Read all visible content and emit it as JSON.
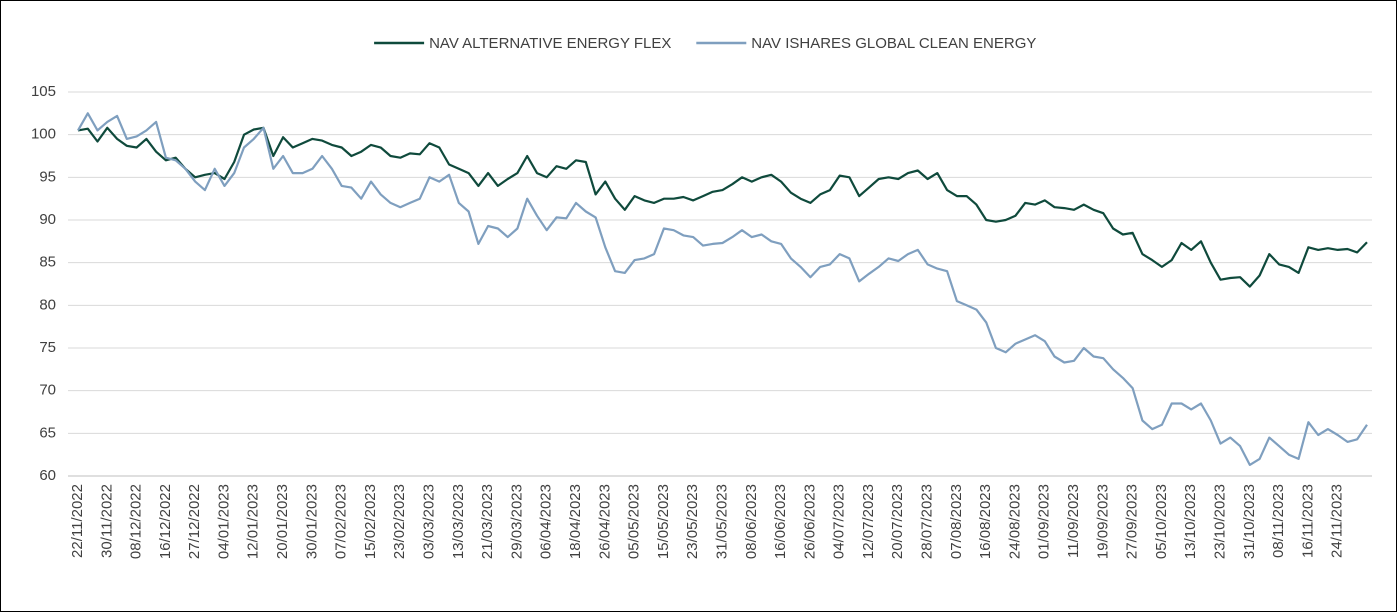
{
  "chart_data": {
    "type": "line",
    "categories": [
      "22/11/2022",
      null,
      null,
      "30/11/2022",
      null,
      null,
      "08/12/2022",
      null,
      null,
      "16/12/2022",
      null,
      null,
      "27/12/2022",
      null,
      null,
      "04/01/2023",
      null,
      null,
      "12/01/2023",
      null,
      null,
      "20/01/2023",
      null,
      null,
      "30/01/2023",
      null,
      null,
      "07/02/2023",
      null,
      null,
      "15/02/2023",
      null,
      null,
      "23/02/2023",
      null,
      null,
      "03/03/2023",
      null,
      null,
      "13/03/2023",
      null,
      null,
      "21/03/2023",
      null,
      null,
      "29/03/2023",
      null,
      null,
      "06/04/2023",
      null,
      null,
      "18/04/2023",
      null,
      null,
      "26/04/2023",
      null,
      null,
      "05/05/2023",
      null,
      null,
      "15/05/2023",
      null,
      null,
      "23/05/2023",
      null,
      null,
      "31/05/2023",
      null,
      null,
      "08/06/2023",
      null,
      null,
      "16/06/2023",
      null,
      null,
      "26/06/2023",
      null,
      null,
      "04/07/2023",
      null,
      null,
      "12/07/2023",
      null,
      null,
      "20/07/2023",
      null,
      null,
      "28/07/2023",
      null,
      null,
      "07/08/2023",
      null,
      null,
      "16/08/2023",
      null,
      null,
      "24/08/2023",
      null,
      null,
      "01/09/2023",
      null,
      null,
      "11/09/2023",
      null,
      null,
      "19/09/2023",
      null,
      null,
      "27/09/2023",
      null,
      null,
      "05/10/2023",
      null,
      null,
      "13/10/2023",
      null,
      null,
      "23/10/2023",
      null,
      null,
      "31/10/2023",
      null,
      null,
      "08/11/2023",
      null,
      null,
      "16/11/2023",
      null,
      null,
      "24/11/2023",
      null,
      null,
      null
    ],
    "series": [
      {
        "name": "NAV ALTERNATIVE ENERGY FLEX",
        "color": "#0f4a3c",
        "values": [
          100.5,
          100.7,
          99.2,
          100.8,
          99.5,
          98.7,
          98.5,
          99.5,
          98.0,
          97.0,
          97.3,
          96.0,
          95.0,
          95.3,
          95.5,
          94.8,
          96.8,
          100.0,
          100.6,
          100.8,
          97.5,
          99.7,
          98.5,
          99.0,
          99.5,
          99.3,
          98.8,
          98.5,
          97.5,
          98.0,
          98.8,
          98.5,
          97.5,
          97.3,
          97.8,
          97.7,
          99.0,
          98.5,
          96.5,
          96.0,
          95.5,
          94.0,
          95.5,
          94.0,
          94.8,
          95.5,
          97.5,
          95.5,
          95.0,
          96.3,
          96.0,
          97.0,
          96.8,
          93.0,
          94.5,
          92.5,
          91.2,
          92.8,
          92.3,
          92.0,
          92.5,
          92.5,
          92.7,
          92.3,
          92.8,
          93.3,
          93.5,
          94.2,
          95.0,
          94.5,
          95.0,
          95.3,
          94.5,
          93.2,
          92.5,
          92.0,
          93.0,
          93.5,
          95.2,
          95.0,
          92.8,
          93.8,
          94.8,
          95.0,
          94.8,
          95.5,
          95.8,
          94.8,
          95.5,
          93.5,
          92.8,
          92.8,
          91.8,
          90.0,
          89.8,
          90.0,
          90.5,
          92.0,
          91.8,
          92.3,
          91.5,
          91.4,
          91.2,
          91.8,
          91.2,
          90.8,
          89.0,
          88.3,
          88.5,
          86.0,
          85.3,
          84.5,
          85.3,
          87.3,
          86.5,
          87.5,
          85.0,
          83.0,
          83.2,
          83.3,
          82.2,
          83.5,
          86.0,
          84.8,
          84.5,
          83.8,
          86.8,
          86.5,
          86.7,
          86.5,
          86.6,
          86.2,
          87.4
        ]
      },
      {
        "name": "NAV ISHARES GLOBAL CLEAN ENERGY",
        "color": "#7f9fbf",
        "values": [
          100.5,
          102.5,
          100.5,
          101.5,
          102.2,
          99.5,
          99.8,
          100.5,
          101.5,
          97.3,
          97.0,
          96.0,
          94.5,
          93.5,
          96.0,
          94.0,
          95.5,
          98.5,
          99.5,
          100.8,
          96.0,
          97.5,
          95.5,
          95.5,
          96.0,
          97.5,
          96.0,
          94.0,
          93.8,
          92.5,
          94.5,
          93.0,
          92.0,
          91.5,
          92.0,
          92.5,
          95.0,
          94.5,
          95.3,
          92.0,
          91.0,
          87.2,
          89.3,
          89.0,
          88.0,
          89.0,
          92.5,
          90.5,
          88.8,
          90.3,
          90.2,
          92.0,
          91.0,
          90.3,
          86.8,
          84.0,
          83.8,
          85.3,
          85.5,
          86.0,
          89.0,
          88.8,
          88.2,
          88.0,
          87.0,
          87.2,
          87.3,
          88.0,
          88.8,
          88.0,
          88.3,
          87.5,
          87.2,
          85.5,
          84.5,
          83.3,
          84.5,
          84.8,
          86.0,
          85.5,
          82.8,
          83.7,
          84.5,
          85.5,
          85.2,
          86.0,
          86.5,
          84.8,
          84.3,
          84.0,
          80.5,
          80.0,
          79.5,
          78.0,
          75.0,
          74.5,
          75.5,
          76.0,
          76.5,
          75.8,
          74.0,
          73.3,
          73.5,
          75.0,
          74.0,
          73.8,
          72.5,
          71.5,
          70.3,
          66.5,
          65.5,
          66.0,
          68.5,
          68.5,
          67.8,
          68.5,
          66.5,
          63.8,
          64.5,
          63.5,
          61.3,
          62.0,
          64.5,
          63.5,
          62.5,
          62.0,
          66.3,
          64.8,
          65.5,
          64.8,
          64.0,
          64.3,
          66.0
        ]
      }
    ],
    "ylim": [
      60,
      105
    ],
    "yticks": [
      60,
      65,
      70,
      75,
      80,
      85,
      90,
      95,
      100,
      105
    ],
    "grid": true,
    "legend": "top"
  }
}
